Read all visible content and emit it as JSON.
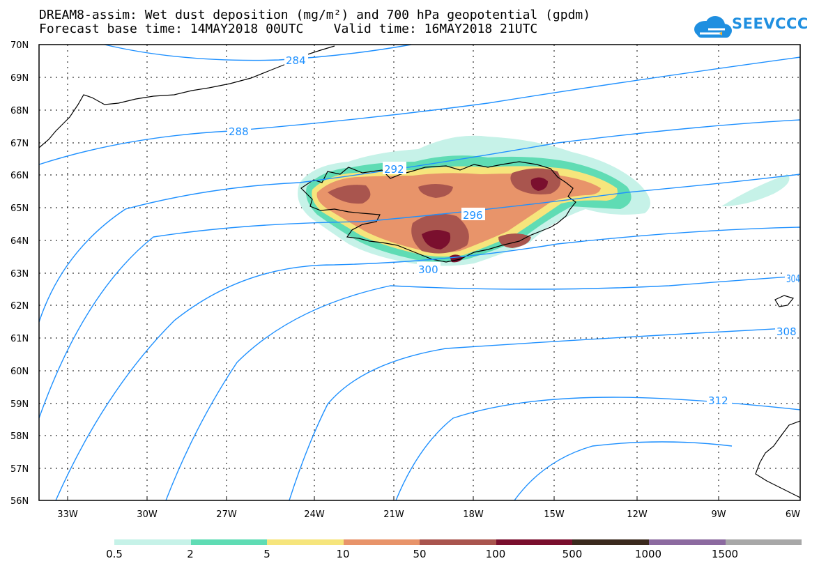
{
  "header": {
    "title_line1": "DREAM8-assim: Wet dust deposition (mg/m²) and 700 hPa geopotential (gpdm)",
    "title_line2": "Forecast base time: 14MAY2018 00UTC    Valid time: 16MAY2018 21UTC",
    "logo_text": "SEEVCCC"
  },
  "map": {
    "lat_labels": [
      "70N",
      "69N",
      "68N",
      "67N",
      "66N",
      "65N",
      "64N",
      "63N",
      "62N",
      "61N",
      "60N",
      "59N",
      "58N",
      "57N",
      "56N"
    ],
    "lon_labels": [
      "33W",
      "30W",
      "27W",
      "24W",
      "21W",
      "18W",
      "15W",
      "12W",
      "9W",
      "6W"
    ],
    "contour_labels": [
      "284",
      "288",
      "292",
      "296",
      "300",
      "304",
      "308",
      "312"
    ],
    "contour_color": "#1e90ff"
  },
  "legend": {
    "colors": [
      "#c6f2e8",
      "#5fdcb4",
      "#f6e57c",
      "#e8946a",
      "#a9554e",
      "#7a0f2e",
      "#3b2a1e",
      "#8c6aa0",
      "#a8a8a8"
    ],
    "labels": [
      "0.5",
      "2",
      "5",
      "10",
      "50",
      "100",
      "500",
      "1000",
      "1500"
    ]
  }
}
